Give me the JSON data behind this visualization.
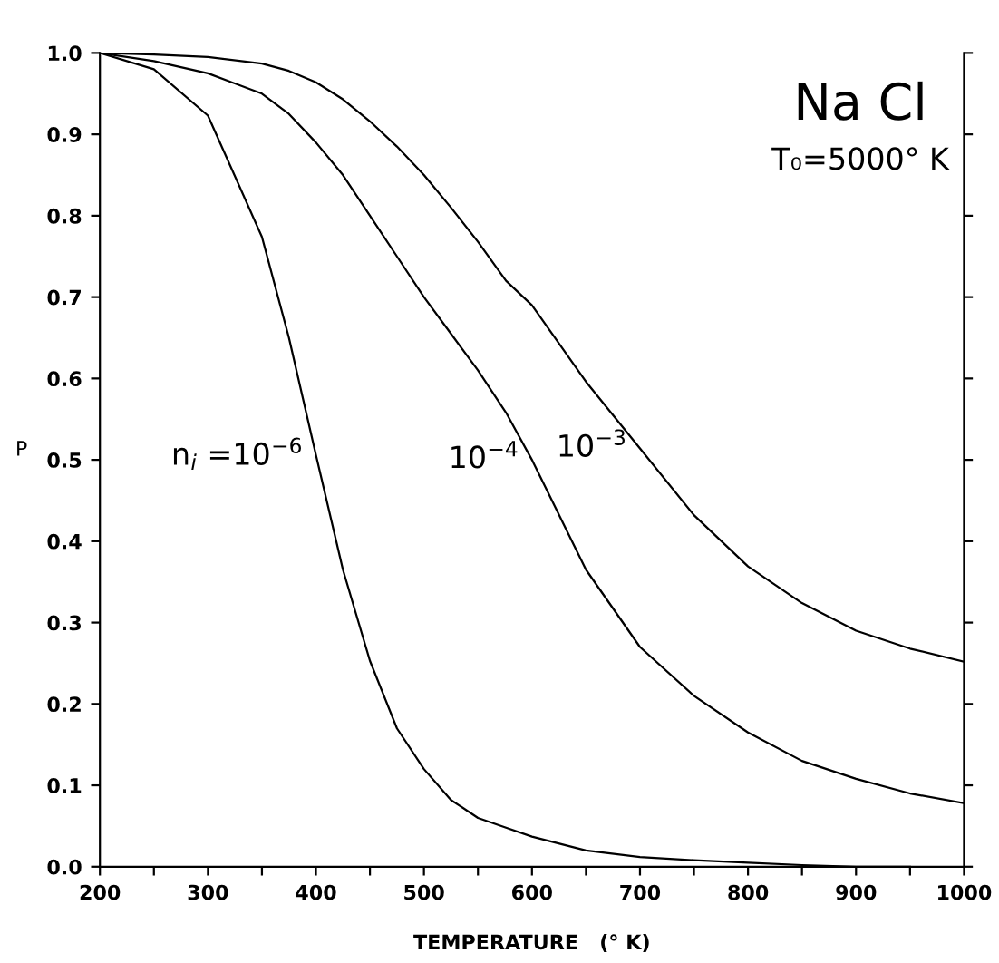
{
  "chart_data": {
    "type": "line",
    "title": "Na Cl",
    "subtitle": "T₀=5000° K",
    "xlabel": "TEMPERATURE   (° K)",
    "ylabel": "P",
    "x": [
      200,
      250,
      300,
      350,
      375,
      400,
      425,
      450,
      475,
      500,
      525,
      550,
      576,
      600,
      650,
      700,
      750,
      800,
      850,
      900,
      950,
      1000
    ],
    "series": [
      {
        "name": "n$_{i}$ =10$^{−6}$",
        "color": "#000000",
        "values": [
          1.0,
          0.98,
          0.923,
          0.774,
          0.65,
          0.506,
          0.365,
          0.253,
          0.17,
          0.12,
          0.082,
          0.06,
          0.048,
          0.037,
          0.02,
          0.012,
          0.008,
          0.005,
          0.002,
          0.0,
          0.0,
          null
        ]
      },
      {
        "name": "10$^{−4}$",
        "color": "#000000",
        "values": [
          1.0,
          0.99,
          0.975,
          0.95,
          0.925,
          0.89,
          0.85,
          0.8,
          0.75,
          0.7,
          0.655,
          0.61,
          0.558,
          0.5,
          0.365,
          0.27,
          0.21,
          0.165,
          0.13,
          0.108,
          0.09,
          0.078
        ]
      },
      {
        "name": "10$^{−3}$",
        "color": "#000000",
        "values": [
          1.0,
          0.998,
          0.995,
          0.987,
          0.978,
          0.964,
          0.943,
          0.916,
          0.885,
          0.85,
          0.81,
          0.768,
          0.72,
          0.69,
          0.596,
          0.514,
          0.432,
          0.369,
          0.324,
          0.29,
          0.268,
          0.252
        ]
      }
    ],
    "xlim": [
      200,
      1000
    ],
    "ylim": [
      0,
      1.0
    ],
    "xticks": [
      200,
      {
        "value": 250,
        "label": null
      },
      300,
      {
        "value": 350,
        "label": null
      },
      400,
      {
        "value": 450,
        "label": null
      },
      500,
      {
        "value": 550,
        "label": null
      },
      600,
      {
        "value": 650,
        "label": null
      },
      700,
      {
        "value": 750,
        "label": null
      },
      800,
      {
        "value": 850,
        "label": null
      },
      900,
      {
        "value": 950,
        "label": null
      },
      1000
    ],
    "yticks": [
      {
        "value": 0,
        "label": "0.0"
      },
      0.1,
      0.2,
      0.3,
      0.4,
      0.5,
      0.6,
      0.7,
      0.8,
      0.9,
      {
        "value": 1.0,
        "label": "1.0"
      }
    ],
    "grid": false,
    "legend": false,
    "marker": "none",
    "line_style": "solid"
  }
}
